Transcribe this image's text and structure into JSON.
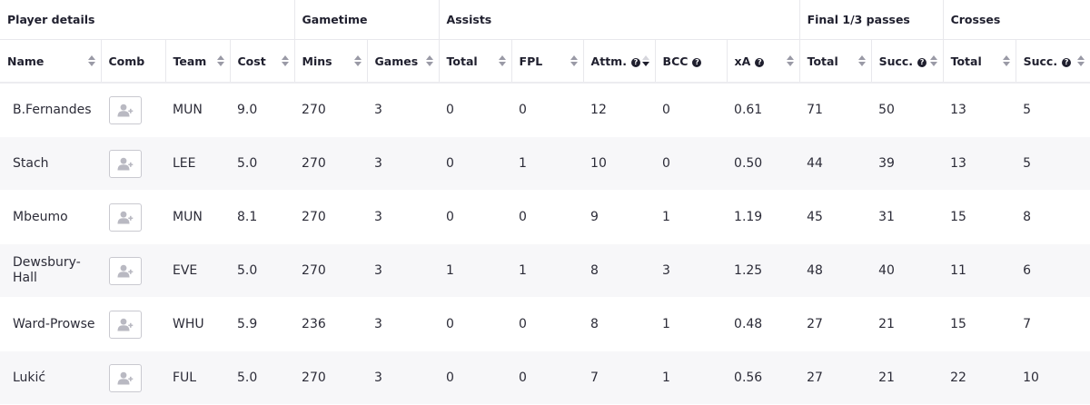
{
  "groups": [
    {
      "label": "Player details"
    },
    {
      "label": "Gametime"
    },
    {
      "label": "Assists"
    },
    {
      "label": "Final 1/3 passes"
    },
    {
      "label": "Crosses"
    }
  ],
  "columns": {
    "name": "Name",
    "comb": "Comb",
    "team": "Team",
    "cost": "Cost",
    "mins": "Mins",
    "games": "Games",
    "assists_total": "Total",
    "fpl": "FPL",
    "attm": "Attm.",
    "bcc": "BCC",
    "xa": "xA",
    "f3_total": "Total",
    "f3_succ": "Succ.",
    "cross_total": "Total",
    "cross_succ": "Succ."
  },
  "help_glyph": "?",
  "sort": {
    "column": "attm",
    "direction": "desc"
  },
  "rows": [
    {
      "name": "B.Fernandes",
      "team": "MUN",
      "cost": "9.0",
      "mins": "270",
      "games": "3",
      "assists_total": "0",
      "fpl": "0",
      "attm": "12",
      "bcc": "0",
      "xa": "0.61",
      "f3_total": "71",
      "f3_succ": "50",
      "cross_total": "13",
      "cross_succ": "5"
    },
    {
      "name": "Stach",
      "team": "LEE",
      "cost": "5.0",
      "mins": "270",
      "games": "3",
      "assists_total": "0",
      "fpl": "1",
      "attm": "10",
      "bcc": "0",
      "xa": "0.50",
      "f3_total": "44",
      "f3_succ": "39",
      "cross_total": "13",
      "cross_succ": "5"
    },
    {
      "name": "Mbeumo",
      "team": "MUN",
      "cost": "8.1",
      "mins": "270",
      "games": "3",
      "assists_total": "0",
      "fpl": "0",
      "attm": "9",
      "bcc": "1",
      "xa": "1.19",
      "f3_total": "45",
      "f3_succ": "31",
      "cross_total": "15",
      "cross_succ": "8"
    },
    {
      "name": "Dewsbury-Hall",
      "team": "EVE",
      "cost": "5.0",
      "mins": "270",
      "games": "3",
      "assists_total": "1",
      "fpl": "1",
      "attm": "8",
      "bcc": "3",
      "xa": "1.25",
      "f3_total": "48",
      "f3_succ": "40",
      "cross_total": "11",
      "cross_succ": "6"
    },
    {
      "name": "Ward-Prowse",
      "team": "WHU",
      "cost": "5.9",
      "mins": "236",
      "games": "3",
      "assists_total": "0",
      "fpl": "0",
      "attm": "8",
      "bcc": "1",
      "xa": "0.48",
      "f3_total": "27",
      "f3_succ": "21",
      "cross_total": "15",
      "cross_succ": "7"
    },
    {
      "name": "Lukić",
      "team": "FUL",
      "cost": "5.0",
      "mins": "270",
      "games": "3",
      "assists_total": "0",
      "fpl": "0",
      "attm": "7",
      "bcc": "1",
      "xa": "0.56",
      "f3_total": "27",
      "f3_succ": "21",
      "cross_total": "22",
      "cross_succ": "10"
    }
  ],
  "icons": {
    "comb_button": "add-user-icon"
  }
}
